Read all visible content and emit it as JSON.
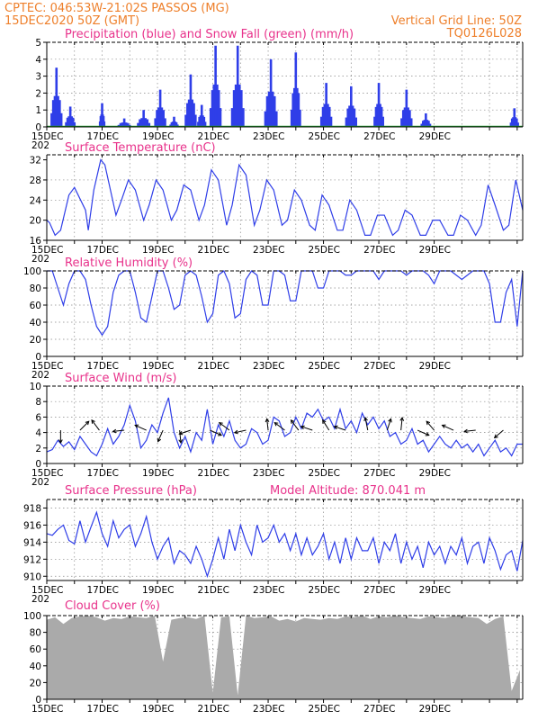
{
  "header": {
    "line1": "CPTEC:   046:53W-21:02S   PASSOS (MG)",
    "line2": "15DEC2020 50Z (GMT)",
    "right1": "Vertical Grid Line: 50Z",
    "right2": "TQ0126L028"
  },
  "colors": {
    "header": "#ee7f2a",
    "title": "#e8328b",
    "series": "#2f3ee8",
    "snow": "#1fa02a",
    "cloud": "#aaaaaa"
  },
  "x_axis": {
    "labels": [
      "15DEC",
      "17DEC",
      "19DEC",
      "21DEC",
      "23DEC",
      "25DEC",
      "27DEC",
      "29DEC"
    ],
    "stub": "202"
  },
  "chart_data": [
    {
      "type": "bar",
      "title": "Precipitation (blue) and Snow Fall (green) (mm/h)",
      "ylim": [
        0,
        5
      ],
      "yticks": [
        "0",
        "1",
        "2",
        "3",
        "4",
        "5"
      ],
      "grid": true,
      "bursts": [
        {
          "day": 0.35,
          "w": 0.35,
          "peak": 3.5
        },
        {
          "day": 0.85,
          "w": 0.3,
          "peak": 1.2
        },
        {
          "day": 2.0,
          "w": 0.15,
          "peak": 1.4
        },
        {
          "day": 2.8,
          "w": 0.4,
          "peak": 0.5
        },
        {
          "day": 3.5,
          "w": 0.4,
          "peak": 1.0
        },
        {
          "day": 4.1,
          "w": 0.35,
          "peak": 2.2
        },
        {
          "day": 4.6,
          "w": 0.25,
          "peak": 0.6
        },
        {
          "day": 5.2,
          "w": 0.35,
          "peak": 3.1
        },
        {
          "day": 5.6,
          "w": 0.25,
          "peak": 1.3
        },
        {
          "day": 6.1,
          "w": 0.35,
          "peak": 4.8
        },
        {
          "day": 6.9,
          "w": 0.4,
          "peak": 4.8
        },
        {
          "day": 8.1,
          "w": 0.4,
          "peak": 4.0
        },
        {
          "day": 9.0,
          "w": 0.3,
          "peak": 4.4
        },
        {
          "day": 10.1,
          "w": 0.35,
          "peak": 2.6
        },
        {
          "day": 11.0,
          "w": 0.35,
          "peak": 2.4
        },
        {
          "day": 12.0,
          "w": 0.3,
          "peak": 2.6
        },
        {
          "day": 13.0,
          "w": 0.35,
          "peak": 2.2
        },
        {
          "day": 13.7,
          "w": 0.3,
          "peak": 0.8
        },
        {
          "day": 16.9,
          "w": 0.25,
          "peak": 1.1
        }
      ],
      "snow": 0
    },
    {
      "type": "line",
      "title": "Surface Temperature (nC)",
      "ylim": [
        16,
        33
      ],
      "yticks": [
        "16",
        "20",
        "24",
        "28",
        "32"
      ],
      "grid": true,
      "x": [
        0,
        0.1,
        0.3,
        0.5,
        0.8,
        1.0,
        1.4,
        1.5,
        1.7,
        1.95,
        2.1,
        2.5,
        2.7,
        2.95,
        3.2,
        3.5,
        3.7,
        3.95,
        4.2,
        4.5,
        4.7,
        4.95,
        5.2,
        5.5,
        5.7,
        5.95,
        6.2,
        6.5,
        6.7,
        6.95,
        7.2,
        7.5,
        7.7,
        7.95,
        8.2,
        8.5,
        8.7,
        8.95,
        9.2,
        9.5,
        9.7,
        9.95,
        10.2,
        10.5,
        10.7,
        10.95,
        11.2,
        11.5,
        11.7,
        11.95,
        12.2,
        12.5,
        12.7,
        12.95,
        13.2,
        13.5,
        13.7,
        13.95,
        14.2,
        14.5,
        14.7,
        14.95,
        15.2,
        15.5,
        15.7,
        15.95,
        16.2,
        16.5,
        16.7,
        16.95,
        17.2
      ],
      "y": [
        20,
        19.5,
        17,
        18,
        25,
        26.5,
        22,
        18,
        26,
        32,
        31,
        21,
        24,
        28,
        26,
        20,
        23,
        28,
        26,
        20,
        22,
        27,
        26,
        20,
        23,
        30,
        28,
        19,
        23,
        31,
        29,
        19,
        22,
        28,
        26,
        19,
        20,
        26,
        24,
        19,
        18,
        25,
        23,
        18,
        18,
        24,
        22,
        17,
        17,
        21,
        21,
        17,
        18,
        22,
        21,
        17,
        17,
        20,
        20,
        17,
        17,
        21,
        20,
        17,
        19,
        27,
        23,
        18,
        19,
        28,
        22
      ]
    },
    {
      "type": "line",
      "title": "Relative Humidity (%)",
      "ylim": [
        0,
        100
      ],
      "yticks": [
        "0",
        "20",
        "40",
        "60",
        "80",
        "100"
      ],
      "grid": true,
      "x": [
        0,
        0.2,
        0.4,
        0.6,
        0.8,
        1.0,
        1.2,
        1.4,
        1.6,
        1.8,
        2.0,
        2.2,
        2.4,
        2.6,
        2.8,
        3.0,
        3.2,
        3.4,
        3.6,
        3.8,
        4.0,
        4.2,
        4.4,
        4.6,
        4.8,
        5.0,
        5.2,
        5.4,
        5.6,
        5.8,
        6.0,
        6.2,
        6.4,
        6.6,
        6.8,
        7.0,
        7.2,
        7.4,
        7.6,
        7.8,
        8.0,
        8.2,
        8.4,
        8.6,
        8.8,
        9.0,
        9.2,
        9.4,
        9.6,
        9.8,
        10.0,
        10.2,
        10.4,
        10.6,
        10.8,
        11.0,
        11.2,
        11.4,
        11.6,
        11.8,
        12.0,
        12.2,
        12.4,
        12.6,
        12.8,
        13.0,
        13.2,
        13.4,
        13.6,
        13.8,
        14.0,
        14.2,
        14.4,
        14.6,
        14.8,
        15.0,
        15.2,
        15.4,
        15.6,
        15.8,
        16.0,
        16.2,
        16.4,
        16.6,
        16.8,
        17.0,
        17.2
      ],
      "y": [
        100,
        100,
        80,
        60,
        85,
        100,
        100,
        90,
        60,
        35,
        25,
        35,
        75,
        95,
        100,
        100,
        75,
        45,
        40,
        70,
        100,
        100,
        80,
        55,
        60,
        95,
        100,
        95,
        70,
        40,
        50,
        95,
        100,
        85,
        45,
        50,
        90,
        100,
        95,
        60,
        60,
        100,
        100,
        95,
        65,
        65,
        100,
        100,
        100,
        80,
        80,
        100,
        100,
        100,
        95,
        95,
        100,
        100,
        100,
        100,
        90,
        100,
        100,
        100,
        100,
        95,
        100,
        100,
        100,
        95,
        85,
        100,
        100,
        100,
        95,
        90,
        95,
        100,
        100,
        100,
        85,
        40,
        40,
        75,
        90,
        35,
        100
      ]
    },
    {
      "type": "line",
      "title": "Surface Wind (m/s)",
      "ylim": [
        0,
        10
      ],
      "yticks": [
        "0",
        "2",
        "4",
        "6",
        "8",
        "10"
      ],
      "grid": true,
      "x": [
        0,
        0.2,
        0.4,
        0.6,
        0.8,
        1.0,
        1.2,
        1.4,
        1.6,
        1.8,
        2.0,
        2.2,
        2.4,
        2.6,
        2.8,
        3.0,
        3.2,
        3.4,
        3.6,
        3.8,
        4.0,
        4.2,
        4.4,
        4.6,
        4.8,
        5.0,
        5.2,
        5.4,
        5.6,
        5.8,
        6.0,
        6.2,
        6.4,
        6.6,
        6.8,
        7.0,
        7.2,
        7.4,
        7.6,
        7.8,
        8.0,
        8.2,
        8.4,
        8.6,
        8.8,
        9.0,
        9.2,
        9.4,
        9.6,
        9.8,
        10.0,
        10.2,
        10.4,
        10.6,
        10.8,
        11.0,
        11.2,
        11.4,
        11.6,
        11.8,
        12.0,
        12.2,
        12.4,
        12.6,
        12.8,
        13.0,
        13.2,
        13.4,
        13.6,
        13.8,
        14.0,
        14.2,
        14.4,
        14.6,
        14.8,
        15.0,
        15.2,
        15.4,
        15.6,
        15.8,
        16.0,
        16.2,
        16.4,
        16.6,
        16.8,
        17.0,
        17.2
      ],
      "y": [
        1.5,
        1.8,
        3.0,
        2.2,
        2.8,
        1.8,
        3.5,
        2.5,
        1.5,
        1.0,
        2.5,
        4.5,
        2.5,
        3.5,
        5.0,
        7.5,
        5.5,
        2.0,
        3.0,
        5.0,
        4.0,
        6.5,
        8.5,
        4.0,
        2.0,
        3.5,
        1.5,
        4.0,
        3.0,
        7.0,
        2.5,
        5.0,
        3.5,
        5.5,
        3.0,
        2.0,
        2.5,
        4.5,
        4.0,
        2.5,
        3.0,
        6.0,
        5.5,
        3.5,
        4.0,
        6.0,
        4.5,
        6.5,
        6.0,
        7.0,
        5.5,
        6.0,
        4.5,
        7.0,
        4.5,
        5.5,
        4.0,
        6.5,
        5.0,
        6.0,
        4.5,
        5.5,
        3.5,
        4.0,
        2.5,
        3.0,
        4.5,
        2.5,
        3.0,
        1.5,
        2.5,
        3.5,
        2.5,
        2.0,
        3.0,
        2.0,
        2.5,
        1.5,
        2.5,
        1.0,
        2.0,
        3.0,
        1.5,
        2.0,
        1.0,
        2.5,
        2.5
      ],
      "arrows": [
        {
          "day": 0.5,
          "u": 0.0,
          "v": -1.0
        },
        {
          "day": 1.2,
          "u": 0.7,
          "v": 0.7
        },
        {
          "day": 1.9,
          "u": -0.6,
          "v": 0.8
        },
        {
          "day": 2.8,
          "u": -0.9,
          "v": -0.1
        },
        {
          "day": 3.6,
          "u": -0.9,
          "v": 0.4
        },
        {
          "day": 4.2,
          "u": -0.4,
          "v": -0.9
        },
        {
          "day": 4.8,
          "u": 0.1,
          "v": -1.0
        },
        {
          "day": 5.2,
          "u": -0.9,
          "v": -0.3
        },
        {
          "day": 5.9,
          "u": 0.9,
          "v": -0.4
        },
        {
          "day": 6.6,
          "u": -0.8,
          "v": 0.6
        },
        {
          "day": 7.2,
          "u": -0.9,
          "v": -0.2
        },
        {
          "day": 8.0,
          "u": -0.1,
          "v": 0.9
        },
        {
          "day": 8.6,
          "u": -0.8,
          "v": 0.6
        },
        {
          "day": 9.1,
          "u": -0.6,
          "v": 0.8
        },
        {
          "day": 9.6,
          "u": -0.9,
          "v": 0.3
        },
        {
          "day": 10.2,
          "u": -0.5,
          "v": 0.8
        },
        {
          "day": 10.8,
          "u": -0.9,
          "v": 0.3
        },
        {
          "day": 11.6,
          "u": -0.2,
          "v": 1.0
        },
        {
          "day": 12.3,
          "u": 0.3,
          "v": 0.9
        },
        {
          "day": 12.8,
          "u": 0.1,
          "v": 1.0
        },
        {
          "day": 13.4,
          "u": 0.9,
          "v": -0.4
        },
        {
          "day": 14.0,
          "u": -0.6,
          "v": 0.7
        },
        {
          "day": 14.7,
          "u": -0.9,
          "v": 0.4
        },
        {
          "day": 15.5,
          "u": -0.9,
          "v": -0.1
        },
        {
          "day": 16.5,
          "u": -0.7,
          "v": -0.6
        }
      ]
    },
    {
      "type": "line",
      "title": "Surface Pressure (hPa)",
      "annotation": "Model Altitude: 870.041 m",
      "ylim": [
        909.5,
        919
      ],
      "yticks": [
        "910",
        "912",
        "914",
        "916",
        "918"
      ],
      "grid": true,
      "x": [
        0,
        0.2,
        0.4,
        0.6,
        0.8,
        1.0,
        1.2,
        1.4,
        1.6,
        1.8,
        2.0,
        2.2,
        2.4,
        2.6,
        2.8,
        3.0,
        3.2,
        3.4,
        3.6,
        3.8,
        4.0,
        4.2,
        4.4,
        4.6,
        4.8,
        5.0,
        5.2,
        5.4,
        5.6,
        5.8,
        6.0,
        6.2,
        6.4,
        6.6,
        6.8,
        7.0,
        7.2,
        7.4,
        7.6,
        7.8,
        8.0,
        8.2,
        8.4,
        8.6,
        8.8,
        9.0,
        9.2,
        9.4,
        9.6,
        9.8,
        10.0,
        10.2,
        10.4,
        10.6,
        10.8,
        11.0,
        11.2,
        11.4,
        11.6,
        11.8,
        12.0,
        12.2,
        12.4,
        12.6,
        12.8,
        13.0,
        13.2,
        13.4,
        13.6,
        13.8,
        14.0,
        14.2,
        14.4,
        14.6,
        14.8,
        15.0,
        15.2,
        15.4,
        15.6,
        15.8,
        16.0,
        16.2,
        16.4,
        16.6,
        16.8,
        17.0,
        17.2
      ],
      "y": [
        915,
        914.8,
        915.5,
        916,
        914.2,
        913.8,
        916.5,
        914,
        915.8,
        917.5,
        915,
        913.5,
        916.5,
        914.5,
        915.5,
        916,
        913.5,
        915,
        917,
        914,
        912,
        913.5,
        914.5,
        911.5,
        913,
        912.5,
        911.5,
        913.5,
        912,
        910,
        912,
        914.5,
        912,
        915.5,
        913,
        916,
        914,
        912.5,
        916,
        914,
        914.5,
        916,
        914,
        915,
        913,
        915,
        912.5,
        914.5,
        912.5,
        913.5,
        915,
        912,
        914,
        911.5,
        914.5,
        912,
        914.5,
        913,
        913,
        914.5,
        911.5,
        914,
        913,
        915,
        911.5,
        914,
        912,
        913.5,
        911,
        914,
        912.5,
        913.5,
        911.5,
        913.5,
        912.5,
        914.5,
        911.5,
        913.5,
        914,
        911.5,
        914.5,
        913,
        910.8,
        912.5,
        913,
        910.6,
        914.2
      ]
    },
    {
      "type": "area",
      "title": "Cloud Cover (%)",
      "ylim": [
        0,
        100
      ],
      "yticks": [
        "0",
        "20",
        "40",
        "60",
        "80",
        "100"
      ],
      "grid": true,
      "x": [
        0,
        0.3,
        0.6,
        0.9,
        1.2,
        1.5,
        1.8,
        2.1,
        2.4,
        2.7,
        3.0,
        3.3,
        3.6,
        3.9,
        4.2,
        4.5,
        4.8,
        5.1,
        5.4,
        5.7,
        6.0,
        6.3,
        6.6,
        6.9,
        7.2,
        7.5,
        7.8,
        8.1,
        8.4,
        8.7,
        9.0,
        9.3,
        9.6,
        9.9,
        10.2,
        10.5,
        10.8,
        11.1,
        11.4,
        11.7,
        12.0,
        12.3,
        12.6,
        12.9,
        13.2,
        13.5,
        13.8,
        14.1,
        14.4,
        14.7,
        15.0,
        15.3,
        15.6,
        15.9,
        16.2,
        16.5,
        16.8,
        17.1
      ],
      "y": [
        95,
        98,
        90,
        97,
        99,
        100,
        98,
        94,
        97,
        96,
        99,
        98,
        97,
        100,
        45,
        95,
        97,
        98,
        96,
        100,
        8,
        98,
        99,
        5,
        100,
        97,
        98,
        99,
        94,
        96,
        93,
        97,
        96,
        95,
        97,
        96,
        99,
        98,
        100,
        96,
        99,
        98,
        100,
        98,
        97,
        96,
        99,
        98,
        97,
        100,
        99,
        98,
        97,
        90,
        96,
        99,
        10,
        35
      ]
    }
  ]
}
